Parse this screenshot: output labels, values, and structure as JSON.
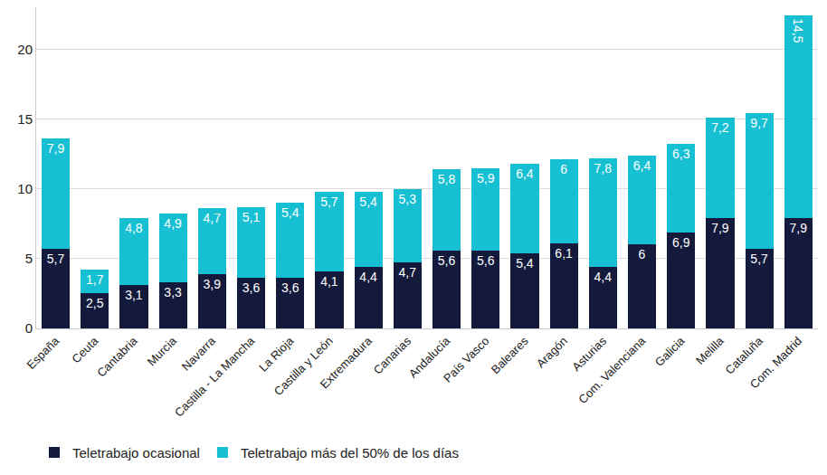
{
  "chart_data": {
    "type": "bar",
    "stacked": true,
    "data_labels": true,
    "grid": true,
    "legend": "bottom",
    "categories": [
      "España",
      "Ceuta",
      "Cantabria",
      "Murcia",
      "Navarra",
      "Castilla - La Mancha",
      "La Rioja",
      "Castilla y León",
      "Extremadura",
      "Canarias",
      "Andalucía",
      "País Vasco",
      "Baleares",
      "Aragón",
      "Asturias",
      "Com. Valenciana",
      "Galicia",
      "Melilla",
      "Cataluña",
      "Com. Madrid"
    ],
    "series": [
      {
        "name": "Teletrabajo ocasional",
        "color": "#141a3c",
        "values": [
          5.7,
          2.5,
          3.1,
          3.3,
          3.9,
          3.6,
          3.6,
          4.1,
          4.4,
          4.7,
          5.6,
          5.6,
          5.4,
          6.1,
          4.4,
          6,
          6.9,
          7.9,
          5.7,
          7.9
        ],
        "value_labels": [
          "5,7",
          "2,5",
          "3,1",
          "3,3",
          "3,9",
          "3,6",
          "3,6",
          "4,1",
          "4,4",
          "4,7",
          "5,6",
          "5,6",
          "5,4",
          "6,1",
          "4,4",
          "6",
          "6,9",
          "7,9",
          "5,7",
          "7,9"
        ]
      },
      {
        "name": "Teletrabajo más del 50% de los días",
        "color": "#17bfd2",
        "values": [
          7.9,
          1.7,
          4.8,
          4.9,
          4.7,
          5.1,
          5.4,
          5.7,
          5.4,
          5.3,
          5.8,
          5.9,
          6.4,
          6,
          7.8,
          6.4,
          6.3,
          7.2,
          9.7,
          14.5
        ],
        "value_labels": [
          "7,9",
          "1,7",
          "4,8",
          "4,9",
          "4,7",
          "5,1",
          "5,4",
          "5,7",
          "5,4",
          "5,3",
          "5,8",
          "5,9",
          "6,4",
          "6",
          "7,8",
          "6,4",
          "6,3",
          "7,2",
          "9,7",
          "14,5"
        ]
      }
    ],
    "ylim": [
      0,
      23
    ],
    "yticks": [
      0,
      5,
      10,
      15,
      20
    ]
  }
}
